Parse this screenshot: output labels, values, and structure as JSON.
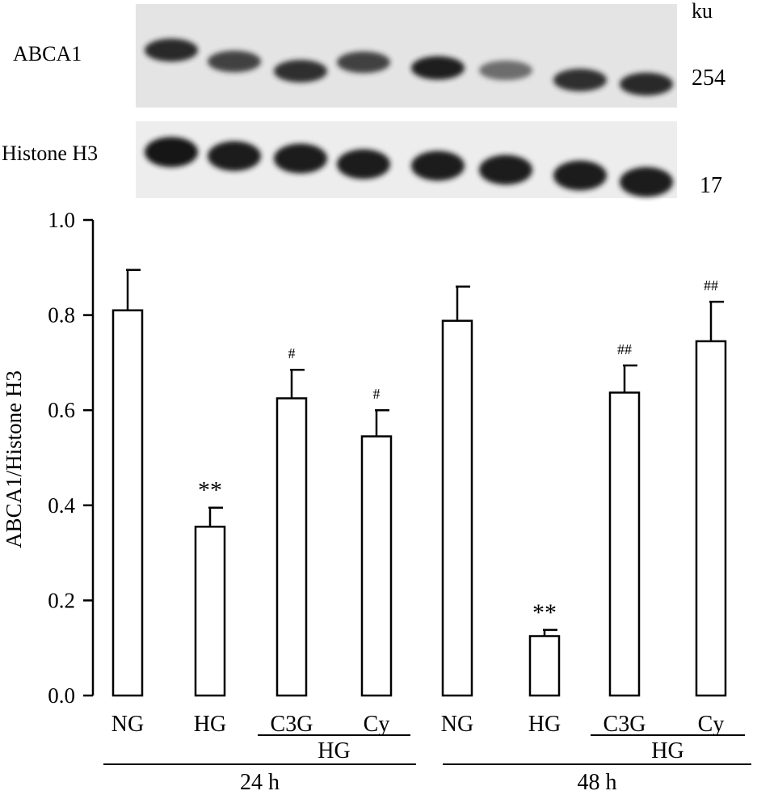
{
  "blot": {
    "unit_label": "ku",
    "rows": [
      {
        "label": "ABCA1",
        "marker": "254",
        "intensities": [
          0.85,
          0.7,
          0.8,
          0.7,
          0.9,
          0.45,
          0.8,
          0.85
        ]
      },
      {
        "label": "Histone H3",
        "marker": "17",
        "intensities": [
          0.95,
          0.92,
          0.92,
          0.92,
          0.92,
          0.92,
          0.92,
          0.92
        ]
      }
    ]
  },
  "chart_data": {
    "type": "bar",
    "ylabel": "ABCA1/Histone H3",
    "xlabel": "",
    "ylim": [
      0,
      1.0
    ],
    "yticks": [
      "0.0",
      "0.2",
      "0.4",
      "0.6",
      "0.8",
      "1.0"
    ],
    "categories": [
      "NG",
      "HG",
      "C3G",
      "Cy",
      "NG",
      "HG",
      "C3G",
      "Cy"
    ],
    "values": [
      0.81,
      0.355,
      0.625,
      0.545,
      0.788,
      0.125,
      0.637,
      0.745
    ],
    "errors": [
      0.085,
      0.04,
      0.06,
      0.055,
      0.072,
      0.013,
      0.057,
      0.083
    ],
    "annotations": [
      "",
      "**",
      "#",
      "#",
      "",
      "**",
      "##",
      "##"
    ],
    "subgroups": [
      {
        "label": "HG",
        "from": 2,
        "to": 3
      },
      {
        "label": "HG",
        "from": 6,
        "to": 7
      }
    ],
    "groups": [
      {
        "label": "24 h",
        "from": 0,
        "to": 3
      },
      {
        "label": "48 h",
        "from": 4,
        "to": 7
      }
    ],
    "bar_fill": "#ffffff",
    "bar_stroke": "#000000",
    "grid": false
  }
}
